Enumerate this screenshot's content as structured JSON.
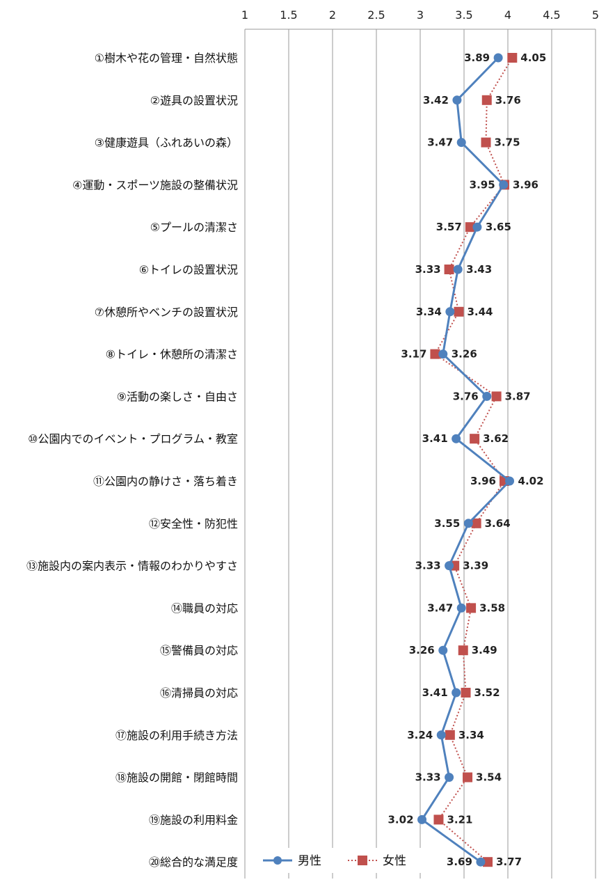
{
  "chart_data": {
    "type": "line",
    "orientation": "horizontal",
    "title": "",
    "xlabel": "",
    "ylabel": "",
    "xlim": [
      1,
      5
    ],
    "xticks": [
      1,
      1.5,
      2,
      2.5,
      3,
      3.5,
      4,
      4.5,
      5
    ],
    "xtick_labels": [
      "1",
      "1.5",
      "2",
      "2.5",
      "3",
      "3.5",
      "4",
      "4.5",
      "5"
    ],
    "grid": true,
    "legend_position": "bottom",
    "categories": [
      "①樹木や花の管理・自然状態",
      "②遊具の設置状況",
      "③健康遊具（ふれあいの森）",
      "④運動・スポーツ施設の整備状況",
      "⑤プールの清潔さ",
      "⑥トイレの設置状況",
      "⑦休憩所やベンチの設置状況",
      "⑧トイレ・休憩所の清潔さ",
      "⑨活動の楽しさ・自由さ",
      "⑩公園内でのイベント・プログラム・教室",
      "⑪公園内の静けさ・落ち着き",
      "⑫安全性・防犯性",
      "⑬施設内の案内表示・情報のわかりやすさ",
      "⑭職員の対応",
      "⑮警備員の対応",
      "⑯清掃員の対応",
      "⑰施設の利用手続き方法",
      "⑱施設の開館・閉館時間",
      "⑲施設の利用料金",
      "⑳総合的な満足度"
    ],
    "series": [
      {
        "name": "男性",
        "color": "#4f81bd",
        "marker": "circle",
        "line_style": "solid",
        "values": [
          3.89,
          3.42,
          3.47,
          3.95,
          3.65,
          3.43,
          3.34,
          3.26,
          3.76,
          3.41,
          4.02,
          3.55,
          3.33,
          3.47,
          3.26,
          3.41,
          3.24,
          3.33,
          3.02,
          3.69
        ],
        "labels": [
          "3.89",
          "3.42",
          "3.47",
          "3.95",
          "3.65",
          "3.43",
          "3.34",
          "3.26",
          "3.76",
          "3.41",
          "4.02",
          "3.55",
          "3.33",
          "3.47",
          "3.26",
          "3.41",
          "3.24",
          "3.33",
          "3.02",
          "3.69"
        ]
      },
      {
        "name": "女性",
        "color": "#c0504d",
        "marker": "square",
        "line_style": "dotted",
        "values": [
          4.05,
          3.76,
          3.75,
          3.96,
          3.57,
          3.33,
          3.44,
          3.17,
          3.87,
          3.62,
          3.96,
          3.64,
          3.39,
          3.58,
          3.49,
          3.52,
          3.34,
          3.54,
          3.21,
          3.77
        ],
        "labels": [
          "4.05",
          "3.76",
          "3.75",
          "3.96",
          "3.57",
          "3.33",
          "3.44",
          "3.17",
          "3.87",
          "3.62",
          "3.96",
          "3.64",
          "3.39",
          "3.58",
          "3.49",
          "3.52",
          "3.34",
          "3.54",
          "3.21",
          "3.77"
        ]
      }
    ]
  }
}
